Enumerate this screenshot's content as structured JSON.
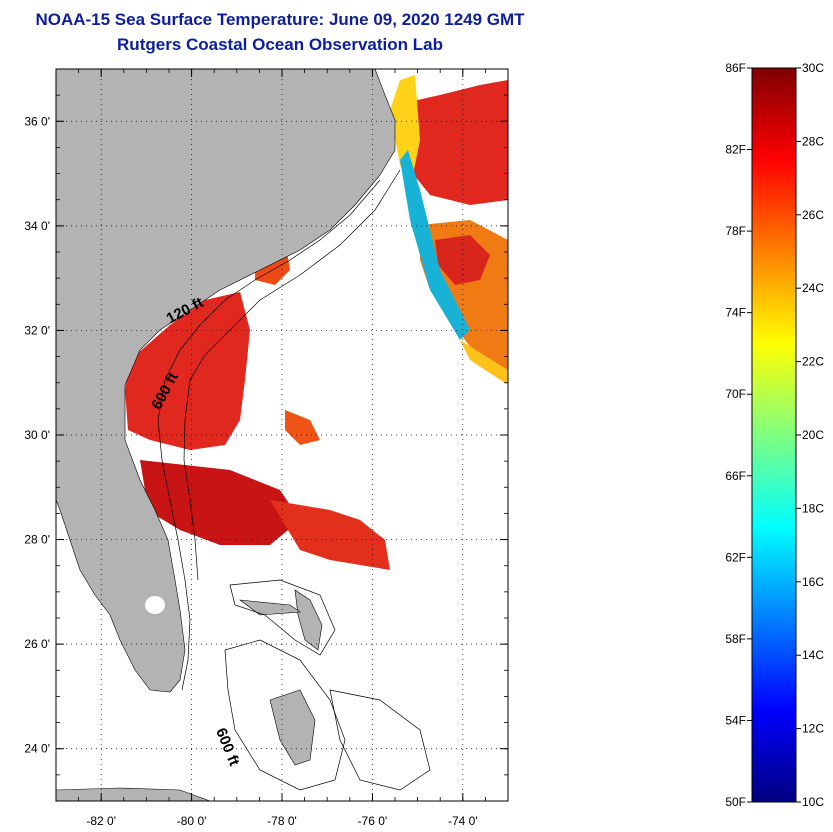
{
  "header": {
    "title_line1": "NOAA-15 Sea Surface Temperature:  June 09, 2020 1249 GMT",
    "title_line2": "Rutgers Coastal Ocean Observation Lab"
  },
  "map": {
    "lon_range": [
      -83,
      -73
    ],
    "lat_range": [
      23,
      37
    ],
    "x_ticks": [
      {
        "lon": -82,
        "label": "-82 0'"
      },
      {
        "lon": -80,
        "label": "-80 0'"
      },
      {
        "lon": -78,
        "label": "-78 0'"
      },
      {
        "lon": -76,
        "label": "-76 0'"
      },
      {
        "lon": -74,
        "label": "-74 0'"
      }
    ],
    "y_ticks": [
      {
        "lat": 36,
        "label": "36 0'"
      },
      {
        "lat": 34,
        "label": "34 0'"
      },
      {
        "lat": 32,
        "label": "32 0'"
      },
      {
        "lat": 30,
        "label": "30 0'"
      },
      {
        "lat": 28,
        "label": "28 0'"
      },
      {
        "lat": 26,
        "label": "26 0'"
      },
      {
        "lat": 24,
        "label": "24 0'"
      }
    ],
    "grid": "dotted",
    "contour_labels": [
      {
        "text": "120 ft",
        "lon": -80.1,
        "lat": 32.3,
        "rotate": -28
      },
      {
        "text": "600 ft",
        "lon": -80.5,
        "lat": 30.8,
        "rotate": -62
      },
      {
        "text": "600 ft",
        "lon": -79.3,
        "lat": 24.0,
        "rotate": 68
      }
    ],
    "colors": {
      "land": "#b3b3b3",
      "no_data": "#ffffff",
      "frame": "#000000"
    }
  },
  "colorbar": {
    "left_labels": [
      "86F",
      "82F",
      "78F",
      "74F",
      "70F",
      "66F",
      "62F",
      "58F",
      "54F",
      "50F"
    ],
    "right_labels": [
      "30C",
      "28C",
      "26C",
      "24C",
      "22C",
      "20C",
      "18C",
      "16C",
      "14C",
      "12C",
      "10C"
    ],
    "range_c": [
      10,
      30
    ],
    "range_f": [
      50,
      86
    ],
    "colormap": "jet"
  }
}
